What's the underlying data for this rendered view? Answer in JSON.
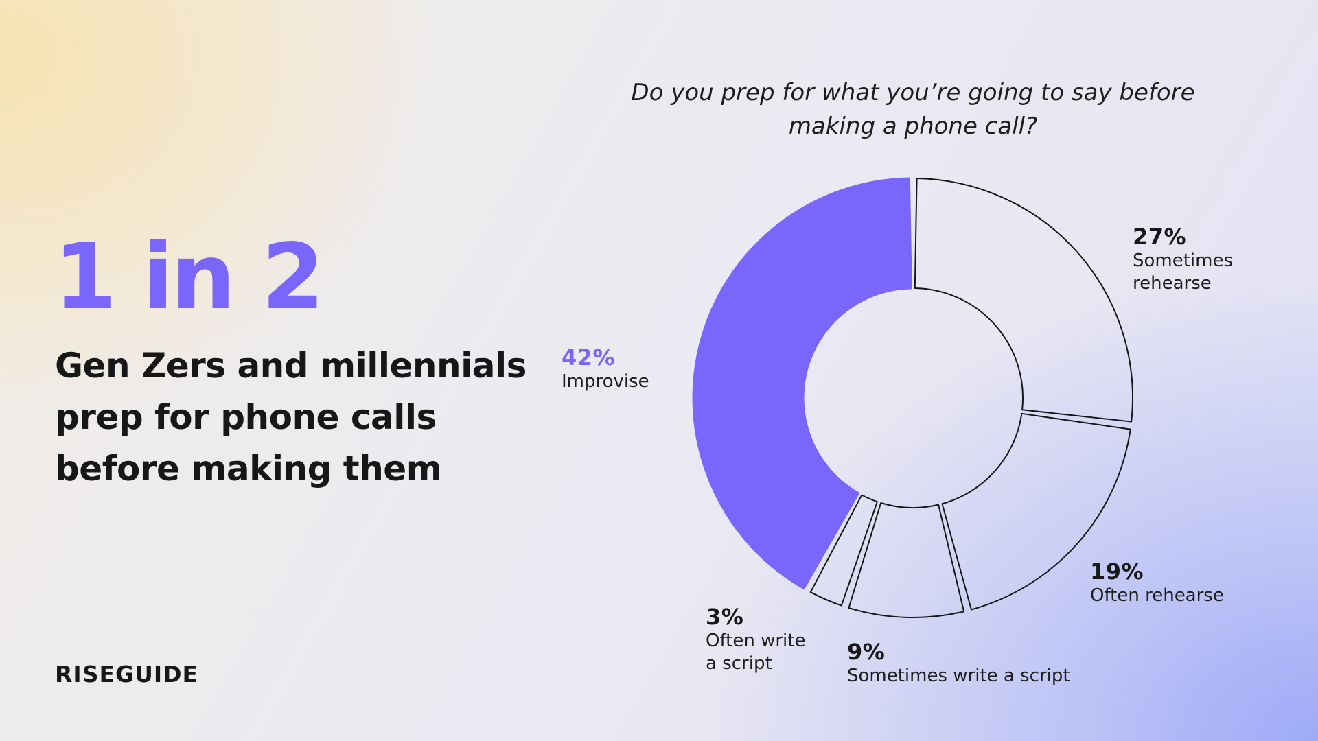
{
  "headline": {
    "stat": "1 in 2",
    "text": "Gen Zers and millennials prep for phone calls before making them"
  },
  "brand": {
    "logo_text": "RISEGUIDE"
  },
  "colors": {
    "accent": "#7b66fb",
    "outline": "#161616",
    "text": "#171717"
  },
  "chart_data": {
    "type": "pie",
    "title": "Do you prep for what you’re going to say before making a phone call?",
    "categories": [
      "Sometimes rehearse",
      "Often rehearse",
      "Sometimes write a script",
      "Often write a script",
      "Improvise"
    ],
    "values": [
      27,
      19,
      9,
      3,
      42
    ],
    "value_labels": [
      "27%",
      "19%",
      "9%",
      "3%",
      "42%"
    ],
    "label_lines": [
      [
        "Sometimes",
        "rehearse"
      ],
      [
        "Often rehearse"
      ],
      [
        "Sometimes write a script"
      ],
      [
        "Often write",
        "a script"
      ],
      [
        "Improvise"
      ]
    ],
    "highlighted": "Improvise",
    "style": "donut"
  }
}
